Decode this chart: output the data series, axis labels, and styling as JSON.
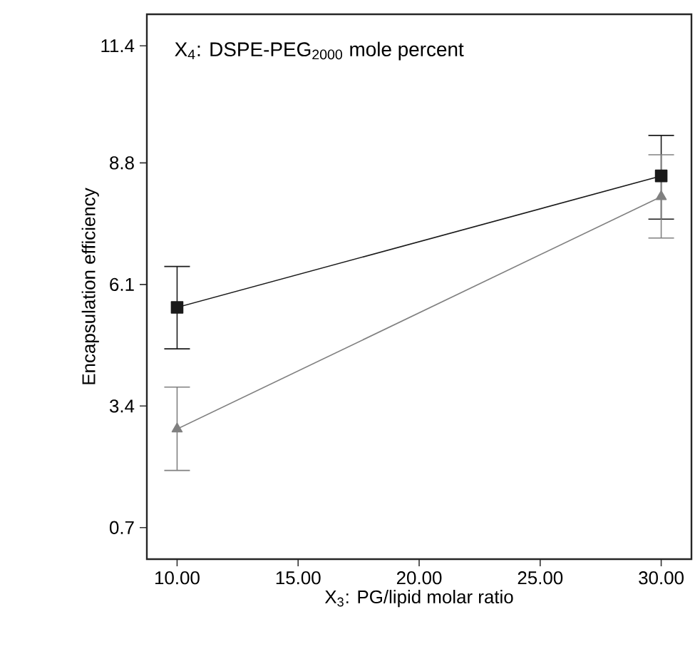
{
  "chart_data": {
    "type": "line",
    "title": "X$_{4}$: DSPE-PEG$_{2000}$ mole percent",
    "xlabel": "X$_{3}$: PG/lipid molar ratio",
    "ylabel": "Encapsulation efficiency",
    "x": [
      10,
      30
    ],
    "series": [
      {
        "color": "#1a1a1a",
        "marker": "square",
        "values": [
          5.59,
          8.51
        ],
        "errors": [
          [
            4.67,
            6.5
          ],
          [
            7.55,
            9.41
          ]
        ]
      },
      {
        "color": "#808080",
        "marker": "triangle",
        "values": [
          2.89,
          8.05
        ],
        "errors": [
          [
            1.97,
            3.82
          ],
          [
            7.13,
            8.98
          ]
        ]
      }
    ],
    "xlim": [
      8.75,
      31.25
    ],
    "ylim": [
      0,
      12.1
    ],
    "xticks": [
      {
        "value": 10,
        "label": "10.00"
      },
      {
        "value": 15,
        "label": "15.00"
      },
      {
        "value": 20,
        "label": "20.00"
      },
      {
        "value": 25,
        "label": "25.00"
      },
      {
        "value": 30,
        "label": "30.00"
      }
    ],
    "yticks": [
      0.7,
      3.4,
      6.1,
      8.8,
      11.4
    ],
    "line_style": "solid"
  }
}
